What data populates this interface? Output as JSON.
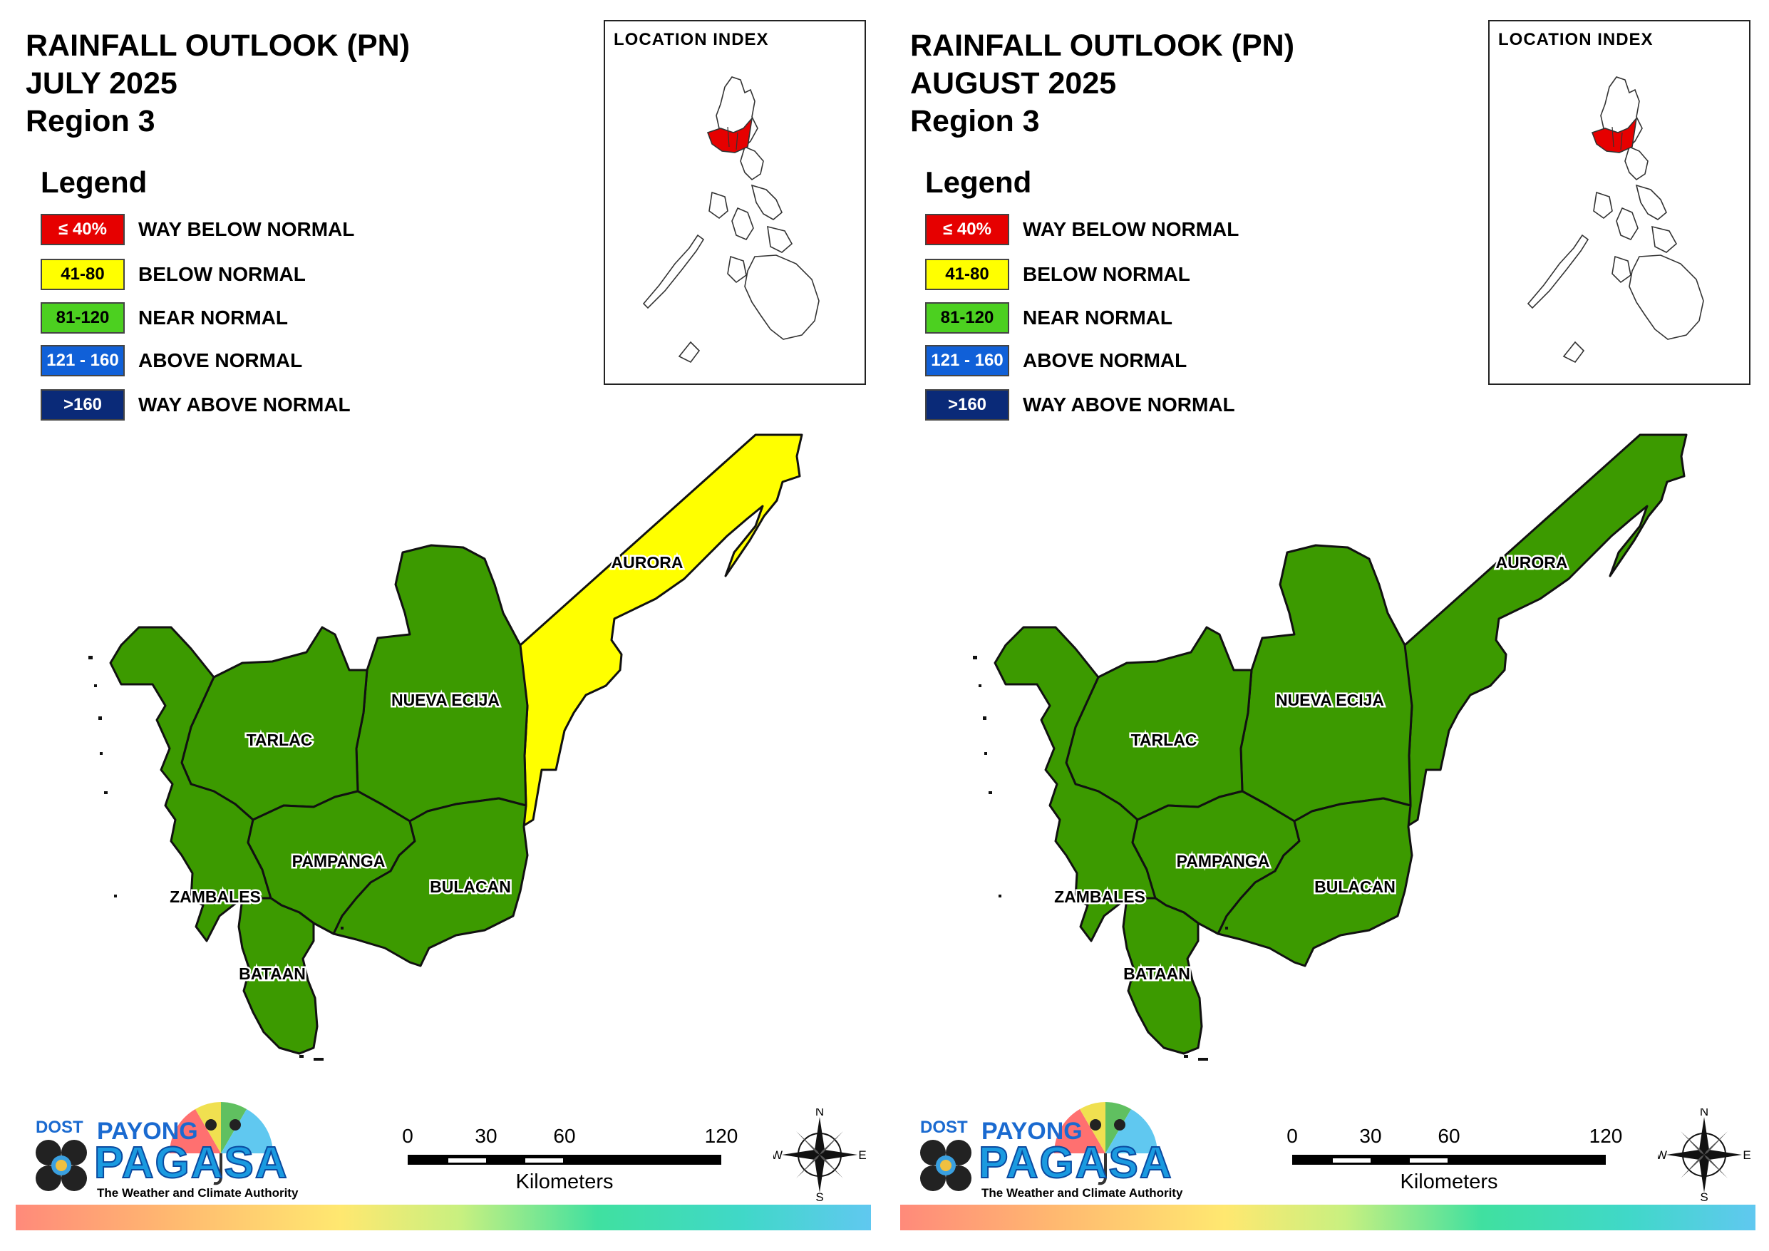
{
  "colors": {
    "way_below": "#e60000",
    "below": "#ffff00",
    "near": "#3ca000",
    "near_swatch": "#4cd020",
    "above": "#1060d8",
    "way_above": "#0a2a78",
    "map_green": "#3c9a00",
    "map_yellow": "#ffff00"
  },
  "legend": {
    "heading": "Legend",
    "items": [
      {
        "range": "≤ 40%",
        "label": "WAY BELOW NORMAL",
        "color": "#e60000",
        "text_color": "#ffffff"
      },
      {
        "range": "41-80",
        "label": "BELOW NORMAL",
        "color": "#ffff00",
        "text_color": "#000000"
      },
      {
        "range": "81-120",
        "label": "NEAR NORMAL",
        "color": "#4cd020",
        "text_color": "#000000"
      },
      {
        "range": "121 - 160",
        "label": "ABOVE NORMAL",
        "color": "#1060d8",
        "text_color": "#ffffff"
      },
      {
        "range": ">160",
        "label": "WAY ABOVE NORMAL",
        "color": "#0a2a78",
        "text_color": "#ffffff"
      }
    ]
  },
  "index": {
    "title": "LOCATION INDEX"
  },
  "provinces": [
    "AURORA",
    "NUEVA ECIJA",
    "TARLAC",
    "PAMPANGA",
    "BULACAN",
    "ZAMBALES",
    "BATAAN"
  ],
  "panels": [
    {
      "title_line1": "RAINFALL OUTLOOK (PN)",
      "title_line2": "JULY 2025",
      "title_line3": "Region 3",
      "aurora_category": "below"
    },
    {
      "title_line1": "RAINFALL OUTLOOK (PN)",
      "title_line2": "AUGUST 2025",
      "title_line3": "Region 3",
      "aurora_category": "near"
    }
  ],
  "scale": {
    "ticks": [
      "0",
      "30",
      "60",
      "120"
    ],
    "unit": "Kilometers"
  },
  "compass": {
    "n": "N",
    "s": "S",
    "e": "E",
    "w": "W"
  },
  "logo": {
    "dost": "DOST",
    "payong": "PAYONG",
    "pagasa": "PAGASA",
    "tagline": "The Weather and Climate Authority"
  }
}
